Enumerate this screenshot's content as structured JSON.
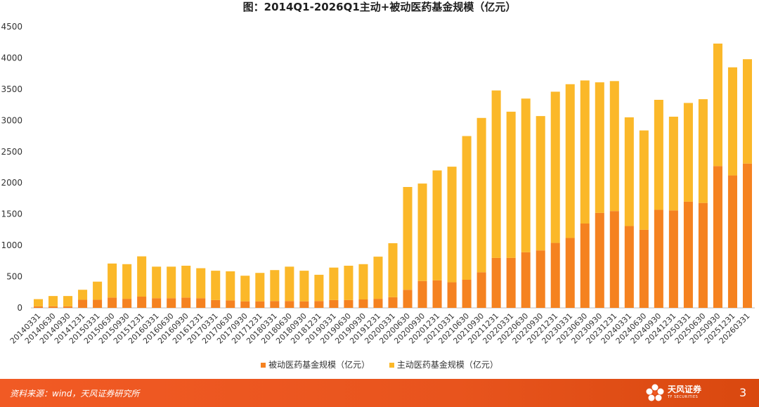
{
  "page": {
    "page_number": "3"
  },
  "footer": {
    "source": "资料来源：wind，天风证券研究所",
    "logo_text": "天风证券",
    "logo_sub": "TF SECURITIES"
  },
  "chart_data": {
    "type": "bar",
    "stacked": true,
    "title": "图：2014Q1-2026Q1主动+被动医药基金规模（亿元）",
    "xlabel": "",
    "ylabel": "",
    "ylim": [
      0,
      4500
    ],
    "yticks": [
      0,
      500,
      1000,
      1500,
      2000,
      2500,
      3000,
      3500,
      4000,
      4500
    ],
    "grid": false,
    "legend_position": "bottom",
    "categories": [
      "20140331",
      "20140630",
      "20140930",
      "20141231",
      "20150331",
      "20150630",
      "20150930",
      "20151231",
      "20160331",
      "20160630",
      "20160930",
      "20161231",
      "20170331",
      "20170630",
      "20170930",
      "20171231",
      "20180331",
      "20180630",
      "20180930",
      "20181231",
      "20190331",
      "20190630",
      "20190930",
      "20191231",
      "20200331",
      "20200630",
      "20200930",
      "20201231",
      "20210331",
      "20210630",
      "20210930",
      "20211231",
      "20220331",
      "20220630",
      "20220930",
      "20221231",
      "20230331",
      "20230630",
      "20230930",
      "20231231",
      "20240331",
      "20240630",
      "20240930",
      "20241231",
      "20250331",
      "20250630",
      "20250930",
      "20251231",
      "20260331"
    ],
    "series": [
      {
        "name": "被动医药基金规模（亿元）",
        "color": "#f58220",
        "values": [
          25,
          25,
          25,
          130,
          130,
          165,
          145,
          180,
          155,
          155,
          165,
          155,
          125,
          120,
          105,
          105,
          110,
          110,
          105,
          110,
          125,
          125,
          135,
          145,
          170,
          290,
          430,
          440,
          410,
          450,
          570,
          800,
          800,
          890,
          920,
          1040,
          1120,
          1350,
          1520,
          1550,
          1310,
          1250,
          1570,
          1560,
          1700,
          1680,
          2270,
          2120,
          2310
        ]
      },
      {
        "name": "主动医药基金规模（亿元）",
        "color": "#fbb829",
        "values": [
          115,
          165,
          165,
          160,
          290,
          545,
          555,
          645,
          505,
          505,
          510,
          480,
          470,
          465,
          410,
          455,
          495,
          550,
          490,
          420,
          520,
          550,
          565,
          675,
          865,
          1645,
          1560,
          1760,
          1850,
          2300,
          2470,
          2680,
          2340,
          2460,
          2150,
          2420,
          2460,
          2290,
          2090,
          2080,
          1740,
          1590,
          1760,
          1500,
          1580,
          1660,
          1960,
          1730,
          1670
        ]
      }
    ]
  }
}
